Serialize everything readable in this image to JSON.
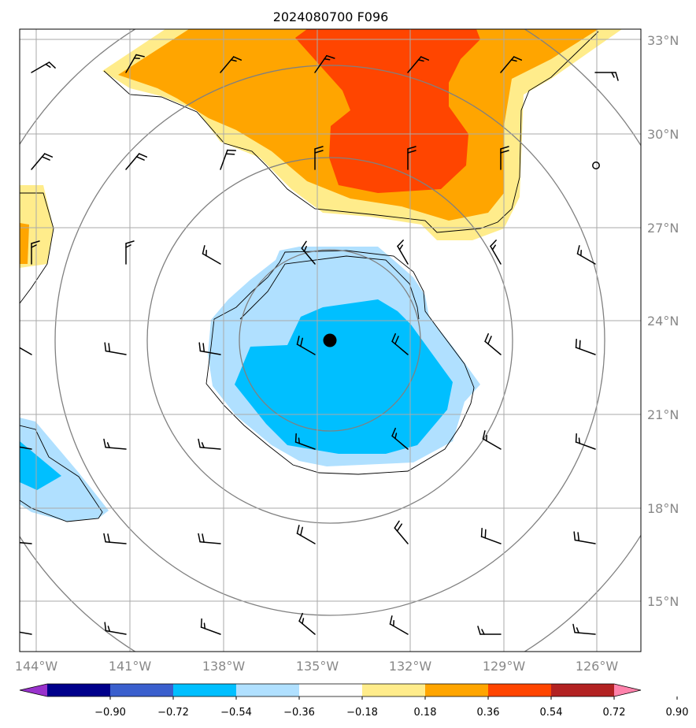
{
  "title": "2024080700 F096",
  "map": {
    "lat_ticks": [
      "33°N",
      "30°N",
      "27°N",
      "24°N",
      "21°N",
      "18°N",
      "15°N"
    ],
    "lon_ticks": [
      "144°W",
      "141°W",
      "138°W",
      "135°W",
      "132°W",
      "129°W",
      "126°W"
    ],
    "center_marker": {
      "lon": "134.6°W",
      "lat": "23.4°N"
    },
    "open_circle": {
      "lon": "126°W",
      "lat": "29.5°N"
    }
  },
  "colorbar": {
    "labels": [
      "−0.90",
      "−0.72",
      "−0.54",
      "−0.36",
      "−0.18",
      "0.18",
      "0.36",
      "0.54",
      "0.72",
      "0.90"
    ],
    "colors": [
      "#9932cc",
      "#00008b",
      "#3a5fcd",
      "#00bfff",
      "#b0e0ff",
      "#ffffff",
      "#ffec8b",
      "#ffa500",
      "#ff4500",
      "#b22222",
      "#ff82ab"
    ]
  },
  "colors": {
    "neg_light": "#b0e0ff",
    "neg_mid": "#00bfff",
    "pos_light": "#ffec8b",
    "pos_mid": "#ffa500",
    "pos_strong": "#ff4500",
    "grid": "#aaaaaa",
    "circles": "#808080"
  }
}
